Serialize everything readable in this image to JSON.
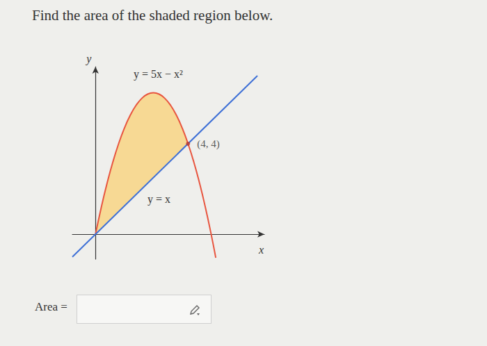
{
  "question": "Find the area of the shaded region below.",
  "answer_label": "Area =",
  "chart_data": {
    "type": "line",
    "x_label": "x",
    "y_label": "y",
    "xlim": [
      -1,
      7.3
    ],
    "ylim": [
      -1.1,
      7.4
    ],
    "tick_labels": false,
    "grid": false,
    "series": [
      {
        "name": "y = 5x − x²",
        "color": "#e8553f",
        "x": [
          0,
          0.25,
          0.5,
          0.75,
          1,
          1.25,
          1.5,
          1.75,
          2,
          2.25,
          2.5,
          2.75,
          3,
          3.25,
          3.5,
          3.75,
          4,
          4.25,
          4.5,
          4.75,
          5,
          5.2
        ],
        "values": [
          0,
          1.1875,
          2.25,
          3.1875,
          4,
          4.6875,
          5.25,
          5.6875,
          6,
          6.1875,
          6.25,
          6.1875,
          6,
          5.6875,
          5.25,
          4.6875,
          4,
          3.1875,
          2.25,
          1.1875,
          0,
          -1.04
        ]
      },
      {
        "name": "y = x",
        "color": "#3d6fd6",
        "x": [
          -1,
          7
        ],
        "values": [
          -1,
          7
        ]
      }
    ],
    "shaded": {
      "x": [
        0,
        4
      ],
      "color": "#f7d994"
    },
    "annotations": [
      {
        "text": "(4, 4)",
        "x": 4,
        "y": 4,
        "marker": "circle",
        "color": "#c0392b"
      }
    ]
  }
}
